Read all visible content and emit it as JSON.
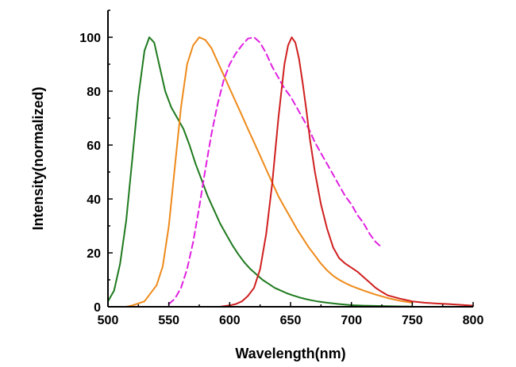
{
  "chart_data": {
    "type": "line",
    "title": "",
    "xlabel": "Wavelength(nm)",
    "ylabel": "Intensity(normalized)",
    "xlim": [
      500,
      800
    ],
    "ylim": [
      0,
      110
    ],
    "xticks": [
      500,
      550,
      600,
      650,
      700,
      750,
      800
    ],
    "yticks": [
      0,
      20,
      40,
      60,
      80,
      100
    ],
    "grid": false,
    "legend": "none",
    "series": [
      {
        "color": "#1f7a1f",
        "dash": "solid",
        "points": [
          [
            500,
            2
          ],
          [
            505,
            6
          ],
          [
            510,
            16
          ],
          [
            515,
            32
          ],
          [
            520,
            55
          ],
          [
            525,
            78
          ],
          [
            530,
            95
          ],
          [
            534,
            100
          ],
          [
            538,
            98
          ],
          [
            542,
            90
          ],
          [
            547,
            80
          ],
          [
            552,
            74
          ],
          [
            557,
            70
          ],
          [
            562,
            66
          ],
          [
            567,
            60
          ],
          [
            572,
            53
          ],
          [
            577,
            47
          ],
          [
            582,
            41
          ],
          [
            587,
            36
          ],
          [
            592,
            31
          ],
          [
            597,
            27
          ],
          [
            602,
            23
          ],
          [
            607,
            19.5
          ],
          [
            612,
            16.5
          ],
          [
            617,
            14
          ],
          [
            622,
            12
          ],
          [
            627,
            10
          ],
          [
            632,
            8.5
          ],
          [
            637,
            7
          ],
          [
            642,
            6
          ],
          [
            647,
            5
          ],
          [
            652,
            4.2
          ],
          [
            657,
            3.5
          ],
          [
            662,
            2.9
          ],
          [
            667,
            2.4
          ],
          [
            672,
            2
          ],
          [
            680,
            1.5
          ],
          [
            690,
            1
          ],
          [
            700,
            0.6
          ],
          [
            710,
            0.4
          ],
          [
            730,
            0.2
          ],
          [
            750,
            0.1
          ]
        ]
      },
      {
        "color": "#ee8a1a",
        "dash": "solid",
        "points": [
          [
            515,
            0
          ],
          [
            520,
            0.5
          ],
          [
            530,
            2
          ],
          [
            540,
            8
          ],
          [
            545,
            15
          ],
          [
            550,
            30
          ],
          [
            555,
            52
          ],
          [
            560,
            74
          ],
          [
            565,
            90
          ],
          [
            570,
            97
          ],
          [
            575,
            100
          ],
          [
            580,
            99
          ],
          [
            585,
            96
          ],
          [
            590,
            91
          ],
          [
            595,
            86
          ],
          [
            600,
            81
          ],
          [
            605,
            76
          ],
          [
            610,
            71
          ],
          [
            615,
            66
          ],
          [
            620,
            61
          ],
          [
            625,
            56
          ],
          [
            630,
            51
          ],
          [
            635,
            46
          ],
          [
            640,
            41
          ],
          [
            645,
            37
          ],
          [
            650,
            33
          ],
          [
            655,
            29
          ],
          [
            660,
            25.5
          ],
          [
            665,
            22
          ],
          [
            670,
            19
          ],
          [
            675,
            16
          ],
          [
            680,
            13.5
          ],
          [
            685,
            11.5
          ],
          [
            690,
            10
          ],
          [
            695,
            8.8
          ],
          [
            700,
            7.7
          ],
          [
            710,
            6
          ],
          [
            720,
            4.5
          ],
          [
            730,
            3.2
          ],
          [
            740,
            2.2
          ],
          [
            750,
            1.5
          ]
        ]
      },
      {
        "color": "#e020e0",
        "dash": "dashed",
        "points": [
          [
            550,
            1
          ],
          [
            555,
            3
          ],
          [
            560,
            7
          ],
          [
            565,
            14
          ],
          [
            570,
            24
          ],
          [
            575,
            37
          ],
          [
            580,
            51
          ],
          [
            585,
            64
          ],
          [
            590,
            75
          ],
          [
            595,
            84
          ],
          [
            600,
            90
          ],
          [
            605,
            94
          ],
          [
            610,
            97
          ],
          [
            615,
            99.5
          ],
          [
            620,
            100
          ],
          [
            625,
            98
          ],
          [
            630,
            94
          ],
          [
            635,
            89
          ],
          [
            640,
            85
          ],
          [
            645,
            81
          ],
          [
            650,
            78
          ],
          [
            655,
            74
          ],
          [
            660,
            70
          ],
          [
            665,
            66
          ],
          [
            670,
            61
          ],
          [
            675,
            57
          ],
          [
            680,
            53
          ],
          [
            685,
            49
          ],
          [
            690,
            45
          ],
          [
            695,
            41
          ],
          [
            700,
            38
          ],
          [
            705,
            34
          ],
          [
            710,
            31
          ],
          [
            715,
            27
          ],
          [
            720,
            24
          ],
          [
            725,
            22
          ]
        ]
      },
      {
        "color": "#d01f1f",
        "dash": "solid",
        "points": [
          [
            592,
            0
          ],
          [
            600,
            0.5
          ],
          [
            605,
            1
          ],
          [
            610,
            2
          ],
          [
            615,
            4
          ],
          [
            620,
            7
          ],
          [
            625,
            14
          ],
          [
            630,
            27
          ],
          [
            635,
            46
          ],
          [
            640,
            70
          ],
          [
            645,
            90
          ],
          [
            648,
            97
          ],
          [
            651,
            100
          ],
          [
            654,
            98
          ],
          [
            657,
            92
          ],
          [
            660,
            83
          ],
          [
            663,
            73
          ],
          [
            666,
            62
          ],
          [
            670,
            50
          ],
          [
            675,
            38
          ],
          [
            680,
            29
          ],
          [
            685,
            22
          ],
          [
            690,
            18
          ],
          [
            695,
            16
          ],
          [
            700,
            14.5
          ],
          [
            705,
            13
          ],
          [
            710,
            11
          ],
          [
            715,
            9
          ],
          [
            720,
            7
          ],
          [
            725,
            5.5
          ],
          [
            730,
            4.2
          ],
          [
            740,
            3
          ],
          [
            750,
            2
          ],
          [
            760,
            1.5
          ],
          [
            770,
            1.2
          ],
          [
            780,
            1
          ],
          [
            790,
            0.7
          ],
          [
            800,
            0.4
          ]
        ]
      }
    ]
  }
}
